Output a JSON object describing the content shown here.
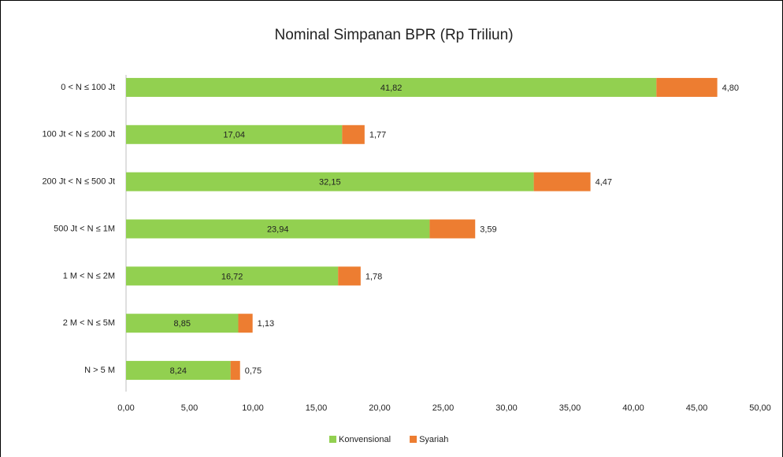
{
  "chart_data": {
    "type": "stacked-bar-horizontal",
    "title": "Nominal Simpanan BPR (Rp Triliun)",
    "categories": [
      "0 < N ≤ 100 Jt",
      "100 Jt < N ≤ 200 Jt",
      "200 Jt < N ≤ 500 Jt",
      "500 Jt < N ≤ 1M",
      "1 M < N ≤ 2M",
      "2 M < N ≤ 5M",
      "N > 5 M"
    ],
    "series": [
      {
        "name": "Konvensional",
        "color": "#92d050",
        "values": [
          41.82,
          17.04,
          32.15,
          23.94,
          16.72,
          8.85,
          8.24
        ],
        "value_labels": [
          "41,82",
          "17,04",
          "32,15",
          "23,94",
          "16,72",
          "8,85",
          "8,24"
        ]
      },
      {
        "name": "Syariah",
        "color": "#ed7d31",
        "values": [
          4.8,
          1.77,
          4.47,
          3.59,
          1.78,
          1.13,
          0.75
        ],
        "value_labels": [
          "4,80",
          "1,77",
          "4,47",
          "3,59",
          "1,78",
          "1,13",
          "0,75"
        ]
      }
    ],
    "xlim": [
      0,
      50
    ],
    "xticks": [
      {
        "value": 0,
        "label": "0,00"
      },
      {
        "value": 5,
        "label": "5,00"
      },
      {
        "value": 10,
        "label": "10,00"
      },
      {
        "value": 15,
        "label": "15,00"
      },
      {
        "value": 20,
        "label": "20,00"
      },
      {
        "value": 25,
        "label": "25,00"
      },
      {
        "value": 30,
        "label": "30,00"
      },
      {
        "value": 35,
        "label": "35,00"
      },
      {
        "value": 40,
        "label": "40,00"
      },
      {
        "value": 45,
        "label": "45,00"
      },
      {
        "value": 50,
        "label": "50,00"
      }
    ],
    "legend": "bottom"
  }
}
